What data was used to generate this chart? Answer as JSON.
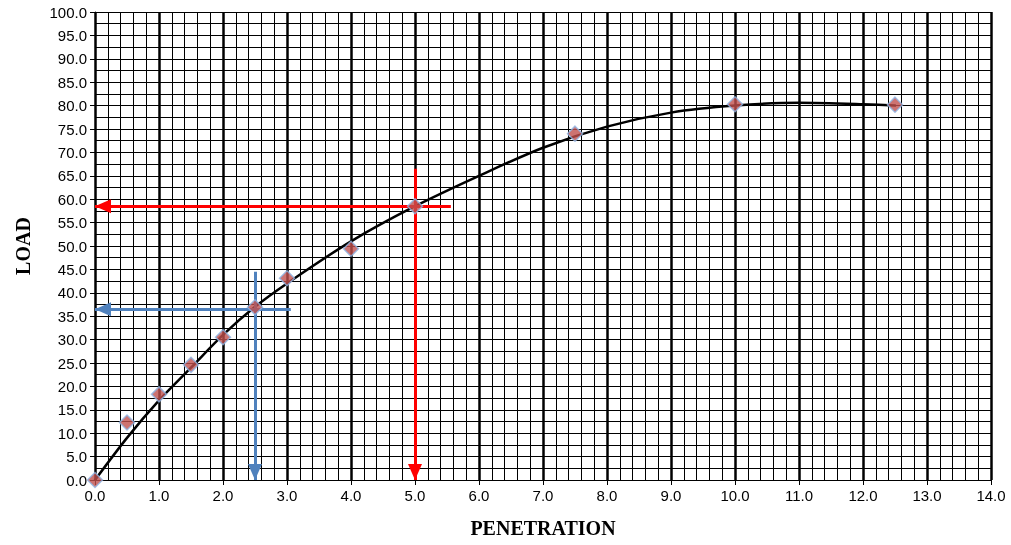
{
  "chart_data": {
    "type": "scatter",
    "xlabel": "PENETRATION",
    "ylabel": "LOAD",
    "xlim": [
      0,
      14
    ],
    "ylim": [
      0,
      100
    ],
    "xticks": [
      {
        "value": 0,
        "label": "0.0"
      },
      {
        "value": 1,
        "label": "1.0"
      },
      {
        "value": 2,
        "label": "2.0"
      },
      {
        "value": 3,
        "label": "3.0"
      },
      {
        "value": 4,
        "label": "4.0"
      },
      {
        "value": 5,
        "label": "5.0"
      },
      {
        "value": 6,
        "label": "6.0"
      },
      {
        "value": 7,
        "label": "7.0"
      },
      {
        "value": 8,
        "label": "8.0"
      },
      {
        "value": 9,
        "label": "9.0"
      },
      {
        "value": 10,
        "label": "10.0"
      },
      {
        "value": 11,
        "label": "11.0"
      },
      {
        "value": 12,
        "label": "12.0"
      },
      {
        "value": 13,
        "label": "13.0"
      },
      {
        "value": 14,
        "label": "14.0"
      }
    ],
    "yticks": [
      {
        "value": 0,
        "label": "0.0"
      },
      {
        "value": 5,
        "label": "5.0"
      },
      {
        "value": 10,
        "label": "10.0"
      },
      {
        "value": 15,
        "label": "15.0"
      },
      {
        "value": 20,
        "label": "20.0"
      },
      {
        "value": 25,
        "label": "25.0"
      },
      {
        "value": 30,
        "label": "30.0"
      },
      {
        "value": 35,
        "label": "35.0"
      },
      {
        "value": 40,
        "label": "40.0"
      },
      {
        "value": 45,
        "label": "45.0"
      },
      {
        "value": 50,
        "label": "50.0"
      },
      {
        "value": 55,
        "label": "55.0"
      },
      {
        "value": 60,
        "label": "60.0"
      },
      {
        "value": 65,
        "label": "65.0"
      },
      {
        "value": 70,
        "label": "70.0"
      },
      {
        "value": 75,
        "label": "75.0"
      },
      {
        "value": 80,
        "label": "80.0"
      },
      {
        "value": 85,
        "label": "85.0"
      },
      {
        "value": 90,
        "label": "90.0"
      },
      {
        "value": 95,
        "label": "95.0"
      },
      {
        "value": 100,
        "label": "100.0"
      }
    ],
    "grid": true,
    "marker": "diamond",
    "series": [
      {
        "color": "#c0504d",
        "x": [
          0,
          0.5,
          1,
          1.5,
          2,
          2.5,
          3,
          4,
          5,
          7.5,
          10,
          12.5
        ],
        "values": [
          0,
          12.3,
          18.3,
          24.6,
          30.5,
          36.9,
          43.1,
          49.4,
          58.5,
          74,
          80.3,
          80.2
        ]
      },
      {
        "type": "line",
        "marker": "none",
        "color": "#000000",
        "x": [
          0,
          0.5,
          1,
          1.5,
          2,
          2.5,
          3,
          4,
          5,
          6,
          7,
          8,
          9,
          10,
          11,
          12,
          12.5
        ],
        "values": [
          0,
          9,
          17,
          24,
          31,
          37,
          42,
          51,
          58.5,
          65,
          71,
          75.5,
          78.5,
          80,
          80.6,
          80.3,
          80
        ]
      }
    ],
    "ref_lines": [
      {
        "axis": "x",
        "value": 5,
        "color": "#ff0000"
      },
      {
        "axis": "y",
        "value": 58.5,
        "color": "#ff0000"
      },
      {
        "axis": "x",
        "value": 2.5,
        "color": "#4f81bd"
      },
      {
        "axis": "y",
        "value": 36.5,
        "color": "#4f81bd"
      }
    ]
  }
}
